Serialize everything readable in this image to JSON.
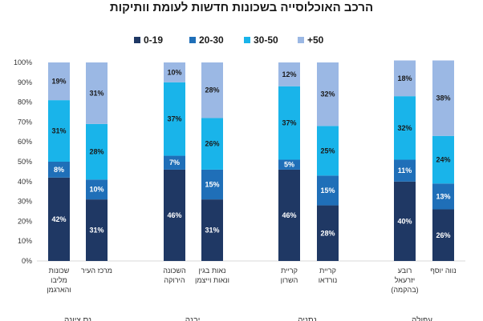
{
  "chart_data": {
    "type": "bar",
    "stacked": true,
    "title": "הרכב האוכלוסייה בשכונות חדשות לעומת וותיקות",
    "ylim": [
      0,
      100
    ],
    "y_ticks": [
      "0%",
      "10%",
      "20%",
      "30%",
      "40%",
      "50%",
      "60%",
      "70%",
      "80%",
      "90%",
      "100%"
    ],
    "legend_position": "top",
    "series": [
      {
        "name": "0-19",
        "color": "#1f3864",
        "label_color": "#ffffff",
        "values": [
          42,
          31,
          46,
          31,
          46,
          28,
          40,
          26
        ]
      },
      {
        "name": "20-30",
        "color": "#1f6fb8",
        "label_color": "#ffffff",
        "values": [
          8,
          10,
          7,
          15,
          5,
          15,
          11,
          13
        ]
      },
      {
        "name": "30-50",
        "color": "#19b4ea",
        "label_color": "#1a1a1a",
        "values": [
          31,
          28,
          37,
          26,
          37,
          25,
          32,
          24
        ]
      },
      {
        "name": "+50",
        "color": "#9bb8e4",
        "label_color": "#1a1a1a",
        "values": [
          19,
          31,
          10,
          28,
          12,
          32,
          18,
          38
        ]
      }
    ],
    "categories": [
      [
        "שכונות",
        "מליבו",
        "והארגמן"
      ],
      [
        "מרכז העיר"
      ],
      [
        "השכונה",
        "הירוקה"
      ],
      [
        "נאות בגין",
        "ונאות וייצמן"
      ],
      [
        "קריית",
        "השרון"
      ],
      [
        "קריית",
        "נורדאו"
      ],
      [
        "רובע",
        "יזרעאל",
        "(בהקמה)"
      ],
      [
        "נווה יוסף"
      ]
    ],
    "groups": [
      "נס ציונה",
      "יבנה",
      "נתניה",
      "עפולה"
    ]
  }
}
